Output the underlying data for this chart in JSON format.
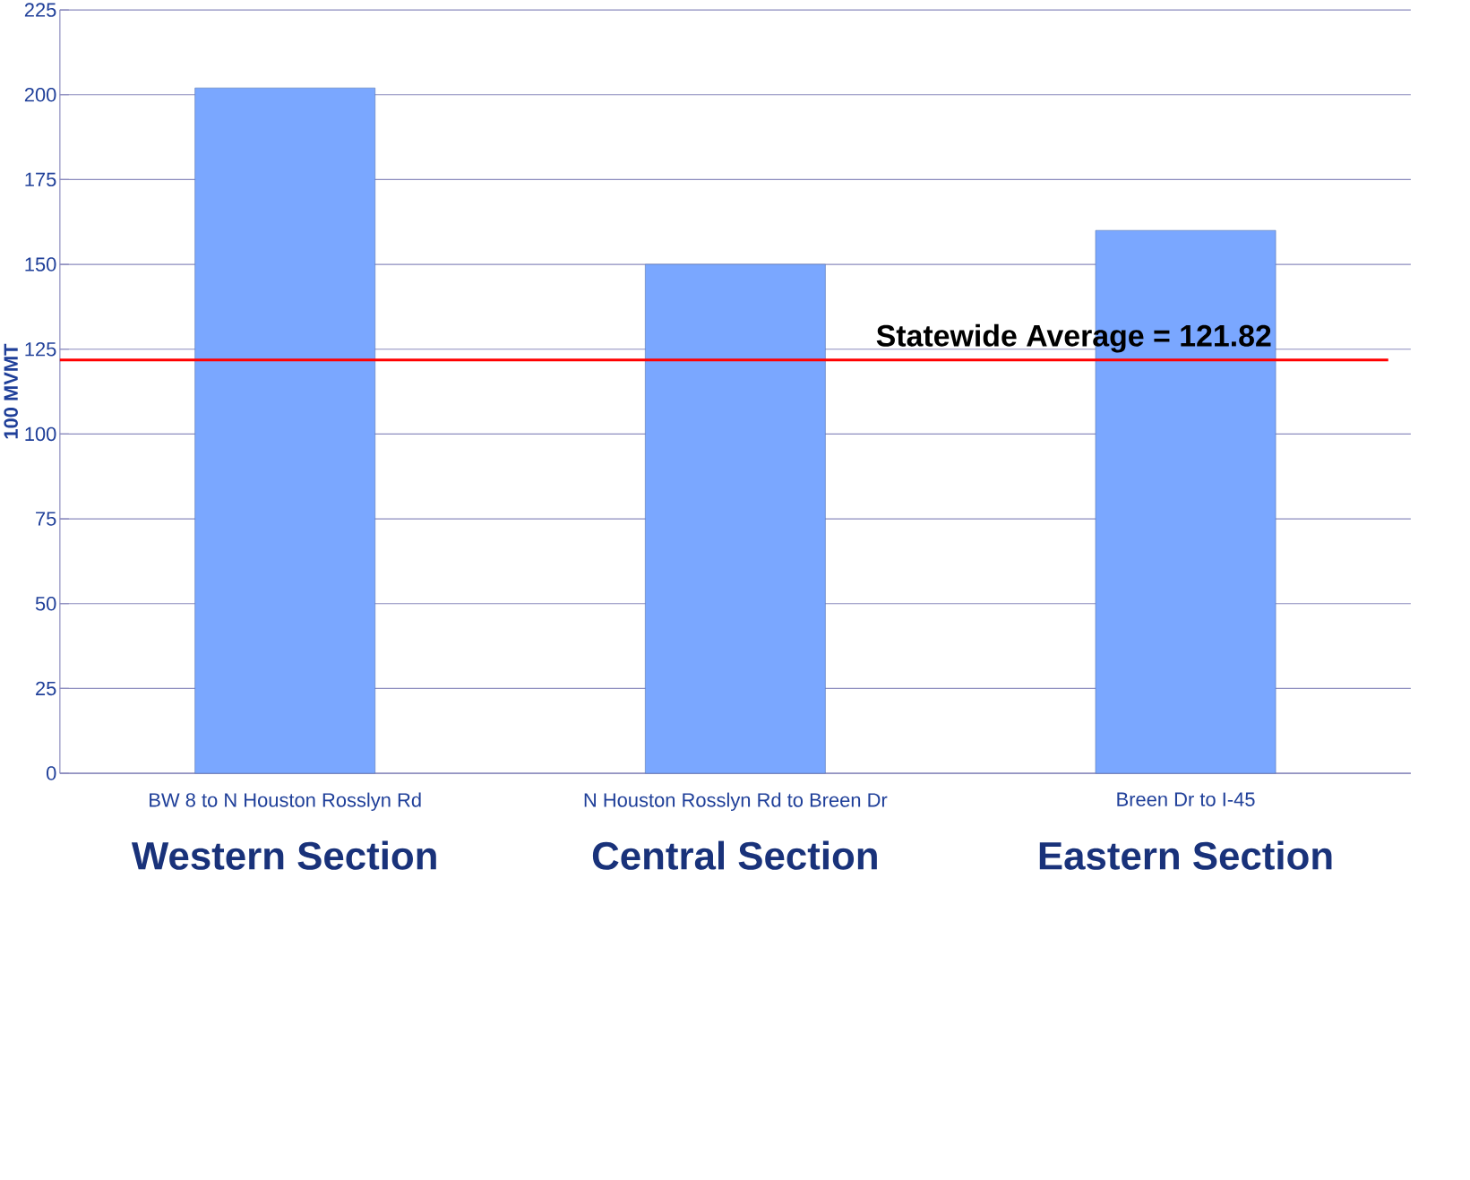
{
  "chart_data": {
    "type": "bar",
    "ylabel": "100 MVMT",
    "categories": [
      "BW 8 to N Houston Rosslyn Rd",
      "N Houston Rosslyn Rd to Breen Dr",
      "Breen Dr to I-45"
    ],
    "values": [
      202,
      150,
      160
    ],
    "color": "#7aa7ff",
    "ylim": [
      0,
      225
    ],
    "yticks": [
      0,
      25,
      50,
      75,
      100,
      125,
      150,
      175,
      200,
      225
    ],
    "grid": "y",
    "ref_lines": [
      {
        "axis": "y",
        "value": 121.82,
        "label": "Statewide Average = 121.82",
        "color": "#ff0000"
      }
    ],
    "annotations": [
      "Western Section",
      "Central Section",
      "Eastern Section"
    ]
  }
}
